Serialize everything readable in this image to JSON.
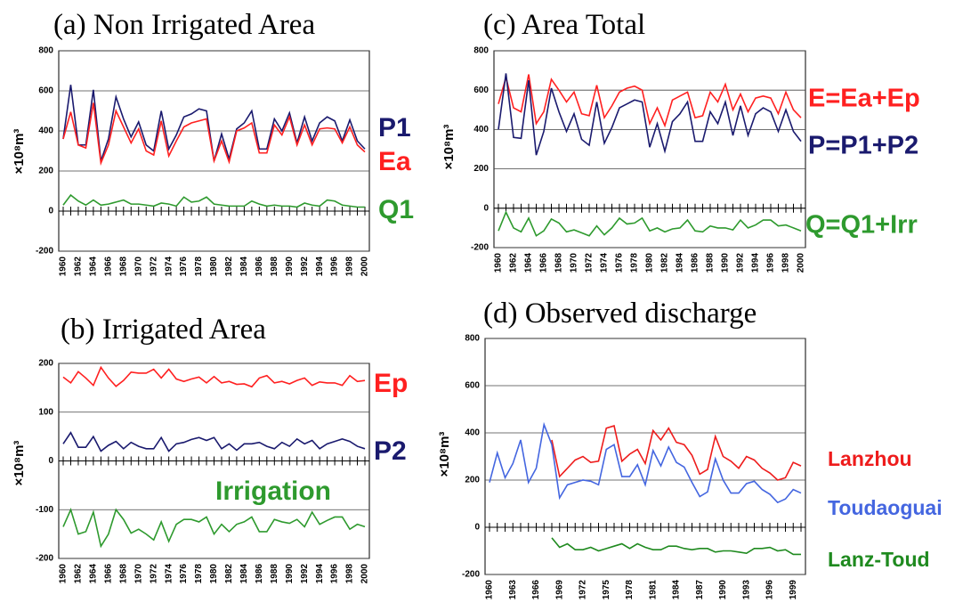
{
  "chart_data": [
    {
      "type": "line",
      "title": "(a) Non Irrigated Area",
      "y_label": "×10⁸m³",
      "x": [
        1960,
        1961,
        1962,
        1963,
        1964,
        1965,
        1966,
        1967,
        1968,
        1969,
        1970,
        1971,
        1972,
        1973,
        1974,
        1975,
        1976,
        1977,
        1978,
        1979,
        1980,
        1981,
        1982,
        1983,
        1984,
        1985,
        1986,
        1987,
        1988,
        1989,
        1990,
        1991,
        1992,
        1993,
        1994,
        1995,
        1996,
        1997,
        1998,
        1999,
        2000
      ],
      "xlim": [
        1960,
        2000
      ],
      "xticks": [
        1960,
        1962,
        1964,
        1966,
        1968,
        1970,
        1972,
        1974,
        1976,
        1978,
        1980,
        1982,
        1984,
        1986,
        1988,
        1990,
        1992,
        1994,
        1996,
        1998,
        2000
      ],
      "ylim": [
        -200,
        800
      ],
      "yticks": [
        -200,
        0,
        200,
        400,
        600,
        800
      ],
      "grid": true,
      "series": [
        {
          "name": "P1",
          "color": "#1a1a6e",
          "values": [
            360,
            630,
            330,
            330,
            605,
            250,
            360,
            570,
            460,
            370,
            445,
            330,
            300,
            500,
            310,
            380,
            470,
            485,
            510,
            500,
            250,
            385,
            260,
            410,
            440,
            500,
            310,
            310,
            460,
            400,
            490,
            340,
            470,
            350,
            440,
            470,
            450,
            350,
            455,
            350,
            310
          ]
        },
        {
          "name": "Ea",
          "color": "#ff2020",
          "values": [
            360,
            495,
            330,
            315,
            540,
            240,
            330,
            500,
            420,
            340,
            410,
            300,
            280,
            450,
            275,
            350,
            420,
            440,
            450,
            460,
            250,
            350,
            245,
            400,
            415,
            440,
            290,
            290,
            430,
            380,
            470,
            330,
            430,
            330,
            410,
            415,
            410,
            340,
            420,
            330,
            295
          ]
        },
        {
          "name": "Q1",
          "color": "#2e9a2e",
          "values": [
            30,
            80,
            50,
            30,
            55,
            30,
            35,
            45,
            55,
            35,
            35,
            30,
            25,
            40,
            35,
            25,
            70,
            45,
            50,
            70,
            35,
            30,
            25,
            25,
            25,
            50,
            35,
            25,
            30,
            25,
            25,
            20,
            40,
            30,
            25,
            55,
            50,
            30,
            25,
            20,
            20
          ]
        }
      ]
    },
    {
      "type": "line",
      "title": "(b) Irrigated Area",
      "y_label": "×10⁸m³",
      "x": [
        1960,
        1961,
        1962,
        1963,
        1964,
        1965,
        1966,
        1967,
        1968,
        1969,
        1970,
        1971,
        1972,
        1973,
        1974,
        1975,
        1976,
        1977,
        1978,
        1979,
        1980,
        1981,
        1982,
        1983,
        1984,
        1985,
        1986,
        1987,
        1988,
        1989,
        1990,
        1991,
        1992,
        1993,
        1994,
        1995,
        1996,
        1997,
        1998,
        1999,
        2000
      ],
      "xlim": [
        1960,
        2000
      ],
      "xticks": [
        1960,
        1962,
        1964,
        1966,
        1968,
        1970,
        1972,
        1974,
        1976,
        1978,
        1980,
        1982,
        1984,
        1986,
        1988,
        1990,
        1992,
        1994,
        1996,
        1998,
        2000
      ],
      "ylim": [
        -200,
        200
      ],
      "yticks": [
        -200,
        -100,
        0,
        100,
        200
      ],
      "grid": true,
      "series": [
        {
          "name": "Ep",
          "color": "#ff2020",
          "values": [
            172,
            160,
            183,
            170,
            155,
            192,
            170,
            153,
            165,
            182,
            180,
            180,
            188,
            170,
            188,
            168,
            163,
            168,
            172,
            160,
            173,
            160,
            163,
            157,
            158,
            152,
            170,
            175,
            160,
            163,
            158,
            165,
            170,
            155,
            162,
            160,
            160,
            155,
            175,
            163,
            165
          ]
        },
        {
          "name": "P2",
          "color": "#1a1a6e",
          "values": [
            35,
            58,
            28,
            28,
            50,
            20,
            32,
            40,
            25,
            38,
            30,
            25,
            25,
            48,
            20,
            35,
            38,
            44,
            48,
            42,
            48,
            25,
            35,
            22,
            35,
            35,
            38,
            30,
            25,
            38,
            30,
            45,
            35,
            42,
            25,
            35,
            40,
            45,
            40,
            30,
            25
          ]
        },
        {
          "name": "Irrigation",
          "color": "#2e9a2e",
          "values": [
            -135,
            -100,
            -150,
            -145,
            -105,
            -175,
            -150,
            -100,
            -120,
            -148,
            -140,
            -150,
            -162,
            -125,
            -165,
            -130,
            -120,
            -120,
            -125,
            -115,
            -150,
            -130,
            -145,
            -130,
            -125,
            -115,
            -145,
            -145,
            -120,
            -125,
            -128,
            -120,
            -135,
            -105,
            -130,
            -122,
            -115,
            -115,
            -140,
            -130,
            -135
          ]
        }
      ]
    },
    {
      "type": "line",
      "title": "(c) Area Total",
      "y_label": "×10⁸m³",
      "x": [
        1960,
        1961,
        1962,
        1963,
        1964,
        1965,
        1966,
        1967,
        1968,
        1969,
        1970,
        1971,
        1972,
        1973,
        1974,
        1975,
        1976,
        1977,
        1978,
        1979,
        1980,
        1981,
        1982,
        1983,
        1984,
        1985,
        1986,
        1987,
        1988,
        1989,
        1990,
        1991,
        1992,
        1993,
        1994,
        1995,
        1996,
        1997,
        1998,
        1999,
        2000
      ],
      "xlim": [
        1960,
        2000
      ],
      "xticks": [
        1960,
        1962,
        1964,
        1966,
        1968,
        1970,
        1972,
        1974,
        1976,
        1978,
        1980,
        1982,
        1984,
        1986,
        1988,
        1990,
        1992,
        1994,
        1996,
        1998,
        2000
      ],
      "ylim": [
        -200,
        800
      ],
      "yticks": [
        -200,
        0,
        200,
        400,
        600,
        800
      ],
      "grid": true,
      "series": [
        {
          "name": "E=Ea+Ep",
          "color": "#ff2020",
          "values": [
            530,
            665,
            510,
            490,
            680,
            430,
            490,
            655,
            600,
            540,
            590,
            480,
            470,
            625,
            460,
            520,
            590,
            610,
            620,
            600,
            430,
            510,
            420,
            550,
            570,
            590,
            460,
            470,
            590,
            540,
            630,
            500,
            580,
            490,
            560,
            570,
            560,
            480,
            590,
            500,
            460
          ]
        },
        {
          "name": "P=P1+P2",
          "color": "#1a1a6e",
          "values": [
            400,
            685,
            360,
            355,
            650,
            270,
            390,
            610,
            490,
            390,
            480,
            350,
            320,
            540,
            330,
            410,
            510,
            530,
            550,
            540,
            310,
            430,
            290,
            440,
            480,
            540,
            340,
            340,
            490,
            430,
            540,
            370,
            520,
            370,
            480,
            510,
            490,
            390,
            500,
            390,
            340
          ]
        },
        {
          "name": "Q=Q1+Irr",
          "color": "#2e9a2e",
          "values": [
            -115,
            -20,
            -100,
            -120,
            -50,
            -140,
            -115,
            -55,
            -75,
            -120,
            -110,
            -125,
            -140,
            -90,
            -135,
            -100,
            -50,
            -80,
            -75,
            -50,
            -115,
            -100,
            -120,
            -105,
            -100,
            -60,
            -115,
            -120,
            -90,
            -100,
            -100,
            -110,
            -60,
            -100,
            -85,
            -60,
            -60,
            -90,
            -85,
            -100,
            -115
          ]
        }
      ]
    },
    {
      "type": "line",
      "title": "(d) Observed discharge",
      "y_label": "×10⁸m³",
      "x": [
        1960,
        1961,
        1962,
        1963,
        1964,
        1965,
        1966,
        1967,
        1968,
        1969,
        1970,
        1971,
        1972,
        1973,
        1974,
        1975,
        1976,
        1977,
        1978,
        1979,
        1980,
        1981,
        1982,
        1983,
        1984,
        1985,
        1986,
        1987,
        1988,
        1989,
        1990,
        1991,
        1992,
        1993,
        1994,
        1995,
        1996,
        1997,
        1998,
        1999,
        2000
      ],
      "xlim": [
        1960,
        2000
      ],
      "xticks": [
        1960,
        1963,
        1966,
        1969,
        1972,
        1975,
        1978,
        1981,
        1984,
        1987,
        1990,
        1993,
        1996,
        1999
      ],
      "ylim": [
        -200,
        800
      ],
      "yticks": [
        -200,
        0,
        200,
        400,
        600,
        800
      ],
      "grid": true,
      "series": [
        {
          "name": "Lanzhou",
          "color": "#ee1c1c",
          "values": [
            null,
            null,
            null,
            null,
            null,
            null,
            null,
            null,
            370,
            215,
            250,
            285,
            300,
            275,
            280,
            420,
            430,
            280,
            310,
            330,
            270,
            410,
            370,
            420,
            360,
            350,
            305,
            225,
            245,
            385,
            300,
            280,
            250,
            300,
            285,
            250,
            230,
            200,
            210,
            275,
            260
          ]
        },
        {
          "name": "Toudaoguai",
          "color": "#4466e0",
          "values": [
            190,
            315,
            210,
            270,
            370,
            190,
            250,
            435,
            350,
            125,
            180,
            190,
            200,
            195,
            180,
            330,
            350,
            215,
            215,
            265,
            180,
            325,
            260,
            340,
            275,
            255,
            190,
            130,
            150,
            290,
            200,
            145,
            145,
            185,
            195,
            160,
            140,
            105,
            120,
            160,
            145
          ]
        },
        {
          "name": "Lanz-Toud",
          "color": "#1f8a1f",
          "values": [
            null,
            null,
            null,
            null,
            null,
            null,
            null,
            null,
            -45,
            -85,
            -70,
            -95,
            -95,
            -85,
            -100,
            -90,
            -80,
            -70,
            -90,
            -70,
            -85,
            -95,
            -95,
            -80,
            -80,
            -90,
            -95,
            -90,
            -90,
            -105,
            -100,
            -100,
            -105,
            -110,
            -90,
            -90,
            -85,
            -100,
            -95,
            -115,
            -115
          ]
        }
      ]
    }
  ]
}
